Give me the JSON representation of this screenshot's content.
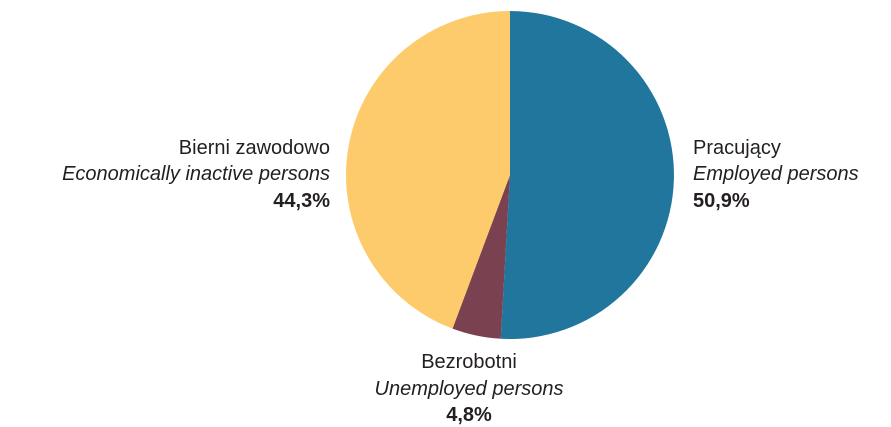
{
  "chart_data": {
    "type": "pie",
    "title": "",
    "start": "12 o'clock",
    "direction": "clockwise",
    "slices": [
      {
        "label_pl": "Pracujący",
        "label_en": "Employed persons",
        "value": 50.9,
        "value_label": "50,9%",
        "color": "#21769e"
      },
      {
        "label_pl": "Bezrobotni",
        "label_en": "Unemployed persons",
        "value": 4.8,
        "value_label": "4,8%",
        "color": "#7a4150"
      },
      {
        "label_pl": "Bierni zawodowo",
        "label_en": "Economically inactive persons",
        "value": 44.3,
        "value_label": "44,3%",
        "color": "#fdcb6b"
      }
    ]
  }
}
